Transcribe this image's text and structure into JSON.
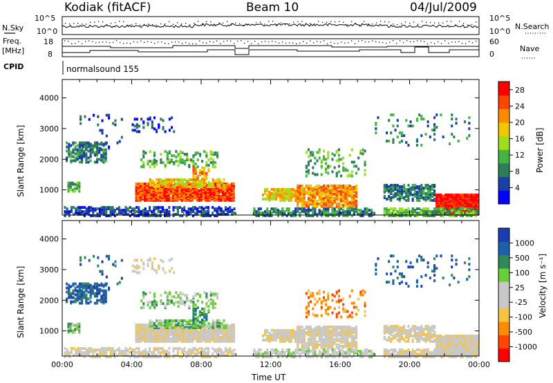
{
  "header": {
    "station": "Kodiak (fitACF)",
    "beam": "Beam 10",
    "date": "04/Jul/2009"
  },
  "side_labels": {
    "nsky": "N.Sky",
    "freq": "Freq.",
    "freq_unit": "[MHz]",
    "cpid": "CPID",
    "nsearch": "N.Search",
    "nave": "Nave"
  },
  "cpid_text": "normalsound 155",
  "colors": {
    "power_scale": [
      "#0000ff",
      "#1c3fa6",
      "#2e7d5a",
      "#42b542",
      "#9dde1e",
      "#f0c800",
      "#ff8c00",
      "#ff4500",
      "#ff0000"
    ],
    "velocity_scale": [
      "#ff0000",
      "#ff4500",
      "#ff8c00",
      "#f5c542",
      "#c8c8c8",
      "#c8c8c8",
      "#6acd3a",
      "#2e8b57",
      "#1e5faa",
      "#1a3eb0"
    ]
  },
  "chart_data": [
    {
      "type": "line",
      "name": "noise-panel",
      "left_axis_label": "N.Sky",
      "right_axis_label": "N.Search",
      "yticks_left": [
        "10^5",
        "10^0"
      ],
      "yticks_right": [
        "10^5",
        "10^0"
      ]
    },
    {
      "type": "line",
      "name": "freq-nave-panel",
      "left_axis_label": "Freq. [MHz]",
      "right_axis_label": "Nave",
      "yticks_left": [
        "18",
        "8"
      ],
      "yticks_right": [
        "60",
        "0"
      ]
    },
    {
      "type": "heatmap",
      "name": "power",
      "ylabel": "Slant Range [km]",
      "yticks": [
        1000,
        2000,
        3000,
        4000
      ],
      "ylim": [
        180,
        4600
      ],
      "xlim": [
        0,
        24
      ],
      "colorbar_label": "Power [dB]",
      "colorbar_ticks": [
        4,
        8,
        12,
        16,
        20,
        24,
        28
      ],
      "colorbar_range": [
        0,
        30
      ]
    },
    {
      "type": "heatmap",
      "name": "velocity",
      "ylabel": "Slant Range [km]",
      "yticks": [
        1000,
        2000,
        3000,
        4000
      ],
      "ylim": [
        180,
        4600
      ],
      "xlim": [
        0,
        24
      ],
      "colorbar_label": "Velocity [m s⁻¹]",
      "colorbar_ticks": [
        "1000",
        "500",
        "100",
        "25",
        "-25",
        "-100",
        "-500",
        "-1000"
      ],
      "xticks": [
        "00:00",
        "04:00",
        "08:00",
        "12:00",
        "16:00",
        "20:00",
        "00:00"
      ],
      "xlabel": "Time UT"
    }
  ]
}
